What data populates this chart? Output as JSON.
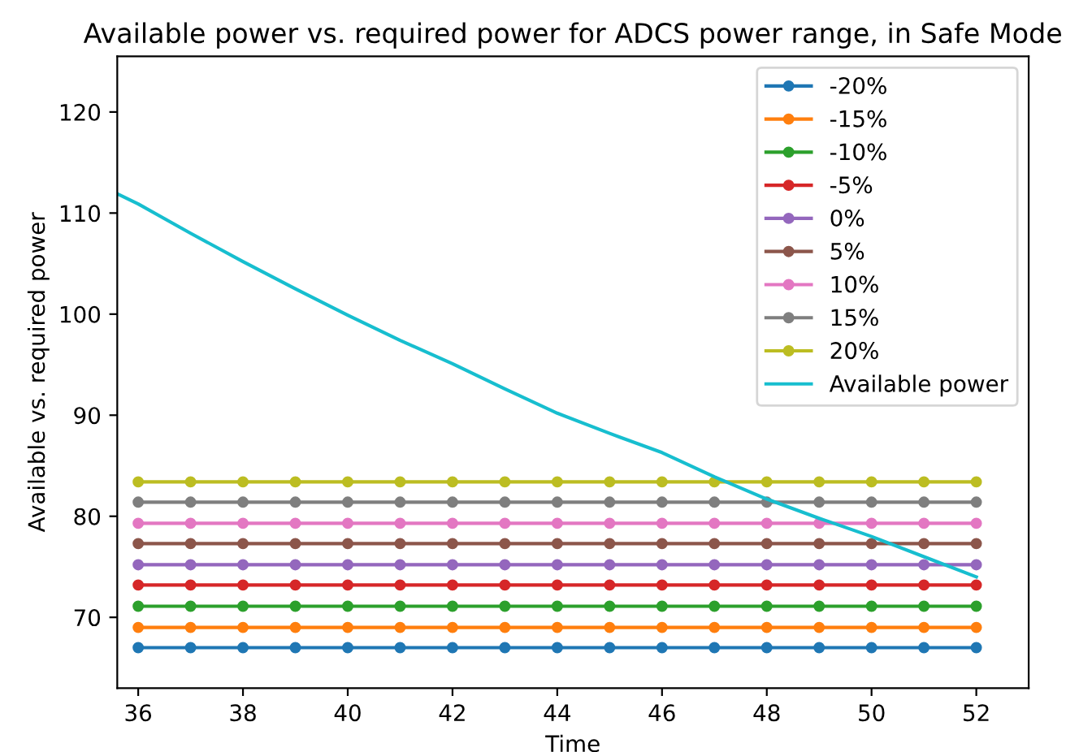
{
  "chart_data": {
    "type": "line",
    "title": "Available power vs. required power for ADCS power range, in Safe Mode",
    "xlabel": "Time",
    "ylabel": "Available vs. required power",
    "x": [
      36,
      37,
      38,
      39,
      40,
      41,
      42,
      43,
      44,
      45,
      46,
      47,
      48,
      49,
      50,
      51,
      52
    ],
    "series": [
      {
        "name": "-20%",
        "color": "#1f77b4",
        "marker": "circle",
        "values": [
          67.0,
          67.0,
          67.0,
          67.0,
          67.0,
          67.0,
          67.0,
          67.0,
          67.0,
          67.0,
          67.0,
          67.0,
          67.0,
          67.0,
          67.0,
          67.0,
          67.0
        ]
      },
      {
        "name": "-15%",
        "color": "#ff7f0e",
        "marker": "circle",
        "values": [
          69.0,
          69.0,
          69.0,
          69.0,
          69.0,
          69.0,
          69.0,
          69.0,
          69.0,
          69.0,
          69.0,
          69.0,
          69.0,
          69.0,
          69.0,
          69.0,
          69.0
        ]
      },
      {
        "name": "-10%",
        "color": "#2ca02c",
        "marker": "circle",
        "values": [
          71.1,
          71.1,
          71.1,
          71.1,
          71.1,
          71.1,
          71.1,
          71.1,
          71.1,
          71.1,
          71.1,
          71.1,
          71.1,
          71.1,
          71.1,
          71.1,
          71.1
        ]
      },
      {
        "name": "-5%",
        "color": "#d62728",
        "marker": "circle",
        "values": [
          73.2,
          73.2,
          73.2,
          73.2,
          73.2,
          73.2,
          73.2,
          73.2,
          73.2,
          73.2,
          73.2,
          73.2,
          73.2,
          73.2,
          73.2,
          73.2,
          73.2
        ]
      },
      {
        "name": "0%",
        "color": "#9467bd",
        "marker": "circle",
        "values": [
          75.2,
          75.2,
          75.2,
          75.2,
          75.2,
          75.2,
          75.2,
          75.2,
          75.2,
          75.2,
          75.2,
          75.2,
          75.2,
          75.2,
          75.2,
          75.2,
          75.2
        ]
      },
      {
        "name": "5%",
        "color": "#8c564b",
        "marker": "circle",
        "values": [
          77.3,
          77.3,
          77.3,
          77.3,
          77.3,
          77.3,
          77.3,
          77.3,
          77.3,
          77.3,
          77.3,
          77.3,
          77.3,
          77.3,
          77.3,
          77.3,
          77.3
        ]
      },
      {
        "name": "10%",
        "color": "#e377c2",
        "marker": "circle",
        "values": [
          79.3,
          79.3,
          79.3,
          79.3,
          79.3,
          79.3,
          79.3,
          79.3,
          79.3,
          79.3,
          79.3,
          79.3,
          79.3,
          79.3,
          79.3,
          79.3,
          79.3
        ]
      },
      {
        "name": "15%",
        "color": "#7f7f7f",
        "marker": "circle",
        "values": [
          81.4,
          81.4,
          81.4,
          81.4,
          81.4,
          81.4,
          81.4,
          81.4,
          81.4,
          81.4,
          81.4,
          81.4,
          81.4,
          81.4,
          81.4,
          81.4,
          81.4
        ]
      },
      {
        "name": "20%",
        "color": "#bcbd22",
        "marker": "circle",
        "values": [
          83.4,
          83.4,
          83.4,
          83.4,
          83.4,
          83.4,
          83.4,
          83.4,
          83.4,
          83.4,
          83.4,
          83.4,
          83.4,
          83.4,
          83.4,
          83.4,
          83.4
        ]
      },
      {
        "name": "Available power",
        "color": "#17becf",
        "marker": "none",
        "x": [
          35.6,
          36,
          37,
          38,
          39,
          40,
          41,
          42,
          43,
          44,
          45,
          46,
          47,
          48,
          49,
          50,
          51,
          52
        ],
        "values": [
          111.9,
          110.9,
          108.0,
          105.2,
          102.5,
          99.9,
          97.4,
          95.1,
          92.6,
          90.2,
          88.2,
          86.3,
          83.9,
          81.7,
          79.8,
          78.0,
          76.0,
          74.0
        ]
      }
    ],
    "xlim": [
      35.6,
      53.0
    ],
    "ylim": [
      63.0,
      125.5
    ],
    "xticks": [
      36,
      38,
      40,
      42,
      44,
      46,
      48,
      50,
      52
    ],
    "yticks": [
      70,
      80,
      90,
      100,
      110,
      120
    ],
    "legend": "top right",
    "grid": false,
    "line_style": "solid"
  }
}
